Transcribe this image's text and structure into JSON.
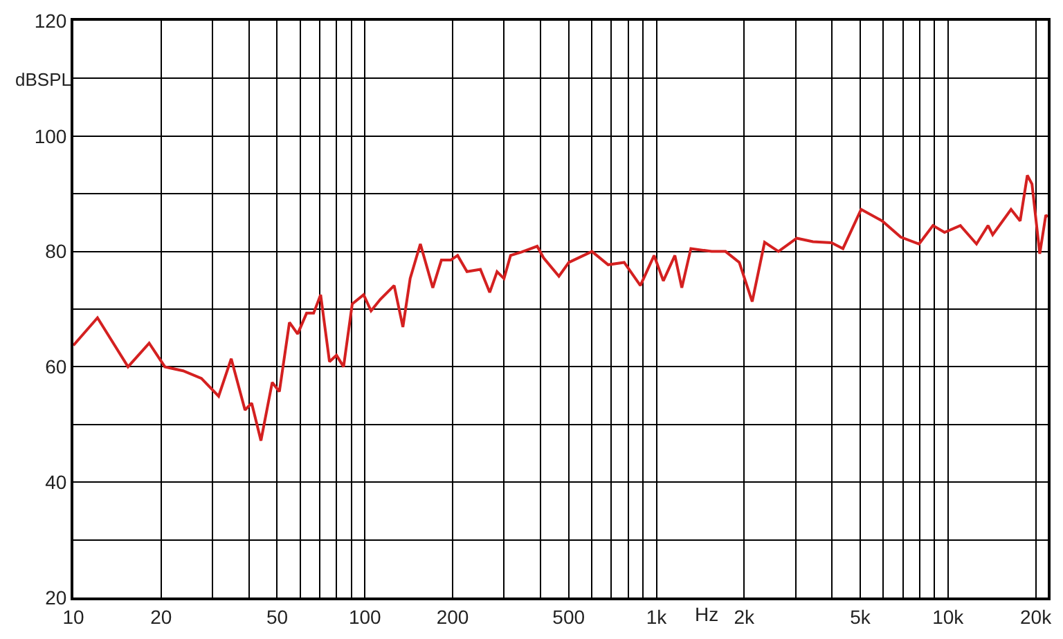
{
  "chart_data": {
    "type": "line",
    "xlabel": "Hz",
    "ylabel": "dBSPL",
    "log": "x",
    "grid": true,
    "marker": "none",
    "line_style": "solid",
    "xlim": [
      10,
      22000
    ],
    "ylim": [
      20,
      120
    ],
    "xticks": [
      10,
      20,
      {
        "value": 30,
        "label": null
      },
      {
        "value": 40,
        "label": null
      },
      50,
      {
        "value": 60,
        "label": null
      },
      {
        "value": 70,
        "label": null
      },
      {
        "value": 80,
        "label": null
      },
      {
        "value": 90,
        "label": null
      },
      100,
      200,
      {
        "value": 300,
        "label": null
      },
      {
        "value": 400,
        "label": null
      },
      500,
      {
        "value": 600,
        "label": null
      },
      {
        "value": 700,
        "label": null
      },
      {
        "value": 800,
        "label": null
      },
      {
        "value": 900,
        "label": null
      },
      {
        "value": 1000,
        "label": "1k"
      },
      {
        "value": 2000,
        "label": "2k"
      },
      {
        "value": 3000,
        "label": null
      },
      {
        "value": 4000,
        "label": null
      },
      {
        "value": 5000,
        "label": "5k"
      },
      {
        "value": 6000,
        "label": null
      },
      {
        "value": 7000,
        "label": null
      },
      {
        "value": 8000,
        "label": null
      },
      {
        "value": 9000,
        "label": null
      },
      {
        "value": 10000,
        "label": "10k"
      },
      {
        "value": 20000,
        "label": "20k"
      }
    ],
    "yticks": [
      20,
      {
        "value": 30,
        "label": null
      },
      40,
      {
        "value": 50,
        "label": null
      },
      60,
      {
        "value": 70,
        "label": null
      },
      80,
      {
        "value": 90,
        "label": null
      },
      100,
      {
        "value": 110,
        "label": null
      },
      120
    ],
    "series": [
      {
        "color": "#d42020",
        "x": [
          10,
          12.1,
          15.4,
          18.2,
          20.6,
          23.8,
          27.5,
          31.5,
          34.8,
          38.8,
          40.9,
          44,
          48.1,
          50.9,
          55.1,
          58.8,
          63.1,
          66.7,
          70.5,
          75.6,
          79.9,
          84.5,
          90.5,
          99,
          105,
          113,
          126,
          135,
          143,
          155,
          171,
          183,
          197,
          208,
          224,
          249,
          268,
          284,
          300,
          316,
          345,
          390,
          410,
          463,
          501,
          601,
          683,
          775,
          881,
          982,
          1056,
          1157,
          1222,
          1313,
          1547,
          1726,
          1924,
          2131,
          2350,
          2622,
          3030,
          3444,
          3985,
          4364,
          5038,
          5948,
          6885,
          7958,
          8886,
          9733,
          11030,
          12530,
          13730,
          14240,
          16460,
          17690,
          18720,
          19420,
          20650,
          21660,
          22000
        ],
        "values": [
          63.7,
          68.5,
          60,
          64.1,
          60,
          59.3,
          58,
          54.9,
          61.4,
          52.5,
          53.7,
          47.2,
          57.3,
          55.7,
          67.7,
          65.7,
          69.3,
          69.3,
          72.5,
          60.9,
          62,
          60,
          70.9,
          72.5,
          69.7,
          71.7,
          74.1,
          66.9,
          75.3,
          81.3,
          73.7,
          78.5,
          78.5,
          79.3,
          76.5,
          76.9,
          72.9,
          76.5,
          75.3,
          79.3,
          79.9,
          80.9,
          78.9,
          75.7,
          78.1,
          80,
          77.7,
          78.1,
          74.1,
          79.3,
          74.9,
          79.3,
          73.7,
          80.5,
          80,
          80,
          78.1,
          71.3,
          81.6,
          80,
          82.3,
          81.7,
          81.5,
          80.5,
          87.3,
          85.3,
          82.5,
          81.3,
          84.5,
          83.3,
          84.5,
          81.3,
          84.5,
          82.9,
          87.3,
          85.3,
          93.2,
          91.7,
          79.6,
          86.3,
          86
        ]
      }
    ]
  }
}
